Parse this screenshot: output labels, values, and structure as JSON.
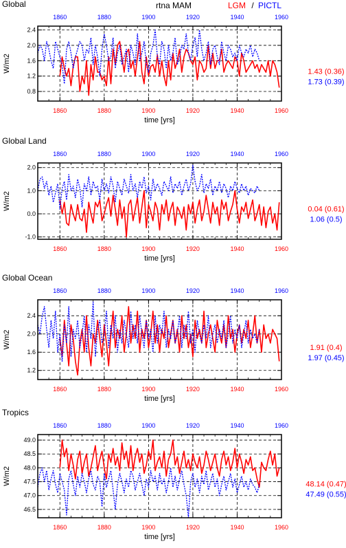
{
  "header": {
    "variable": "rtna MAM",
    "lgm_label": "LGM",
    "separator": "/",
    "pictl_label": "PICTL"
  },
  "colors": {
    "lgm": "#ff0000",
    "pictl": "#0000ff",
    "axis": "#000000"
  },
  "chart_data": [
    {
      "type": "line",
      "title": "Global",
      "xlabel": "time [yrs]",
      "ylabel": "W/m2",
      "xlim": [
        1850,
        1960
      ],
      "ylim": [
        0.55,
        2.5
      ],
      "yticks": [
        0.8,
        1.2,
        1.6,
        2.0,
        2.4
      ],
      "ytick_labels": [
        "0.8",
        "1.2",
        "1.6",
        "2.0",
        "2.4"
      ],
      "xticks": [
        1860,
        1880,
        1900,
        1920,
        1940,
        1960
      ],
      "xtick_labels": [
        "1860",
        "1880",
        "1900",
        "1920",
        "1940",
        "1960"
      ],
      "grid": true,
      "stats": {
        "lgm": "1.43 (0.36)",
        "pictl": "1.73 (0.39)"
      },
      "series": [
        {
          "name": "LGM",
          "color": "#ff0000",
          "style": "solid",
          "x_start": 1860,
          "values": [
            1.2,
            1.7,
            1.4,
            1.2,
            1.4,
            0.95,
            1.45,
            1.7,
            1.7,
            0.8,
            1.2,
            1.0,
            1.6,
            0.7,
            1.5,
            1.1,
            1.7,
            1.3,
            1.3,
            1.1,
            1.2,
            0.95,
            1.7,
            1.0,
            1.9,
            1.5,
            2.0,
            2.1,
            1.7,
            1.3,
            1.8,
            1.9,
            1.4,
            1.6,
            1.2,
            1.7,
            2.1,
            1.3,
            1.0,
            1.7,
            1.2,
            1.45,
            1.5,
            1.3,
            1.75,
            1.2,
            1.6,
            1.2,
            0.95,
            1.6,
            1.1,
            1.8,
            1.4,
            1.6,
            1.9,
            1.3,
            1.7,
            1.9,
            1.8,
            1.6,
            1.5,
            1.7,
            1.1,
            1.6,
            1.5,
            1.3,
            1.4,
            2.0,
            1.4,
            1.8,
            1.4,
            1.6,
            1.6,
            1.9,
            1.3,
            1.5,
            1.6,
            1.5,
            1.4,
            1.7,
            1.6,
            1.2,
            1.8,
            1.6,
            1.3,
            1.4,
            1.5,
            1.6,
            1.4,
            1.5,
            1.3,
            1.5,
            1.4,
            1.3,
            1.6,
            1.2,
            1.6,
            1.5,
            1.3,
            0.9
          ]
        },
        {
          "name": "PICTL",
          "color": "#0000ff",
          "style": "dotted",
          "x_start": 1850,
          "values": [
            1.8,
            2.0,
            1.9,
            1.6,
            2.1,
            1.9,
            1.6,
            1.4,
            2.1,
            1.9,
            1.7,
            1.5,
            1.0,
            1.9,
            2.1,
            1.8,
            1.4,
            1.7,
            1.9,
            2.1,
            2.0,
            1.6,
            1.9,
            1.8,
            2.2,
            1.5,
            2.0,
            1.7,
            1.2,
            1.9,
            2.3,
            2.0,
            1.6,
            1.7,
            2.2,
            1.4,
            1.8,
            2.0,
            1.5,
            1.7,
            1.9,
            1.3,
            2.0,
            1.8,
            1.5,
            2.3,
            1.6,
            1.8,
            2.1,
            1.5,
            1.3,
            1.8,
            2.0,
            2.4,
            1.7,
            1.5,
            2.1,
            1.9,
            1.4,
            2.0,
            1.6,
            1.8,
            2.2,
            1.5,
            1.7,
            2.0,
            1.9,
            2.3,
            1.8,
            1.6,
            2.0,
            2.2,
            1.7,
            2.4,
            1.9,
            1.6,
            1.8,
            2.1,
            1.5,
            1.9,
            2.0,
            1.7,
            1.5,
            2.1,
            1.8,
            1.6,
            2.0,
            1.9,
            1.7,
            1.8,
            1.6,
            2.0,
            1.8,
            1.7,
            1.9,
            1.8,
            2.0,
            1.7,
            1.9,
            1.8,
            1.6
          ]
        }
      ]
    },
    {
      "type": "line",
      "title": "Global Land",
      "xlabel": "time [yrs]",
      "ylabel": "W/m2",
      "xlim": [
        1850,
        1960
      ],
      "ylim": [
        -1.1,
        2.2
      ],
      "yticks": [
        -1.0,
        0.0,
        1.0,
        2.0
      ],
      "ytick_labels": [
        "-1.0",
        "0.0",
        "1.0",
        "2.0"
      ],
      "xticks": [
        1860,
        1880,
        1900,
        1920,
        1940,
        1960
      ],
      "xtick_labels": [
        "1860",
        "1880",
        "1900",
        "1920",
        "1940",
        "1960"
      ],
      "grid": true,
      "stats": {
        "lgm": "0.04 (0.61)",
        "pictl": "1.06 (0.5)"
      },
      "series": [
        {
          "name": "LGM",
          "color": "#ff0000",
          "style": "solid",
          "x_start": 1860,
          "values": [
            0.6,
            0.0,
            0.5,
            -0.4,
            -0.5,
            0.4,
            0.0,
            -0.3,
            0.4,
            -0.2,
            -0.3,
            0.2,
            -0.8,
            0.5,
            0.0,
            -0.4,
            0.5,
            0.3,
            0.6,
            -0.3,
            0.0,
            0.4,
            0.7,
            -0.1,
            0.8,
            0.2,
            -0.5,
            0.6,
            -0.2,
            0.3,
            -1.0,
            0.4,
            0.6,
            -0.3,
            0.2,
            0.7,
            -0.4,
            0.3,
            1.0,
            -0.6,
            0.4,
            0.1,
            -0.3,
            0.5,
            0.2,
            -0.7,
            0.4,
            0.0,
            0.6,
            -0.3,
            0.2,
            0.5,
            -0.5,
            0.3,
            0.1,
            -0.2,
            0.3,
            -0.7,
            0.4,
            0.0,
            0.5,
            -0.4,
            0.2,
            0.6,
            -0.3,
            0.1,
            0.8,
            0.2,
            -0.4,
            0.5,
            0.0,
            0.3,
            -0.5,
            0.6,
            0.2,
            0.5,
            -0.3,
            0.1,
            0.4,
            1.0,
            0.2,
            -0.4,
            0.3,
            0.1,
            0.5,
            -0.2,
            0.2,
            0.6,
            -0.3,
            0.0,
            0.4,
            -0.5,
            0.3,
            -0.6,
            0.1,
            0.3,
            -0.4,
            0.0,
            -0.7,
            0.5
          ]
        },
        {
          "name": "PICTL",
          "color": "#0000ff",
          "style": "dotted",
          "x_start": 1850,
          "values": [
            1.0,
            1.5,
            1.6,
            1.1,
            1.4,
            0.8,
            1.2,
            0.5,
            0.9,
            1.3,
            0.2,
            1.1,
            1.4,
            0.6,
            1.7,
            1.0,
            1.2,
            0.7,
            1.5,
            1.1,
            0.3,
            1.3,
            1.0,
            1.6,
            0.8,
            1.4,
            1.1,
            1.2,
            0.6,
            1.5,
            1.0,
            1.3,
            0.9,
            1.6,
            1.2,
            0.5,
            1.4,
            1.1,
            0.8,
            1.5,
            1.2,
            0.9,
            1.7,
            1.0,
            1.3,
            0.7,
            1.4,
            1.1,
            1.6,
            0.9,
            1.2,
            0.6,
            1.5,
            1.0,
            1.3,
            1.1,
            0.8,
            1.4,
            1.2,
            1.0,
            1.6,
            0.9,
            1.3,
            1.1,
            1.4,
            0.8,
            1.2,
            1.5,
            1.0,
            1.3,
            2.1,
            1.4,
            1.0,
            1.2,
            1.7,
            0.9,
            1.3,
            1.1,
            1.5,
            0.8,
            1.2,
            1.0,
            1.4,
            0.9,
            1.3,
            1.1,
            0.7,
            1.2,
            1.0,
            1.4,
            1.1,
            0.9,
            1.3,
            1.0,
            1.2,
            0.8,
            1.1,
            1.0,
            0.9,
            1.2,
            1.0
          ]
        }
      ]
    },
    {
      "type": "line",
      "title": "Global Ocean",
      "xlabel": "time [yrs]",
      "ylabel": "W/m2",
      "xlim": [
        1850,
        1960
      ],
      "ylim": [
        1.0,
        2.75
      ],
      "yticks": [
        1.2,
        1.6,
        2.0,
        2.4
      ],
      "ytick_labels": [
        "1.2",
        "1.6",
        "2.0",
        "2.4"
      ],
      "xticks": [
        1860,
        1880,
        1900,
        1920,
        1940,
        1960
      ],
      "xtick_labels": [
        "1860",
        "1880",
        "1900",
        "1920",
        "1940",
        "1960"
      ],
      "grid": true,
      "stats": {
        "lgm": "1.91 (0.4)",
        "pictl": "1.97 (0.45)"
      },
      "series": [
        {
          "name": "LGM",
          "color": "#ff0000",
          "style": "solid",
          "x_start": 1860,
          "values": [
            1.9,
            1.5,
            2.3,
            1.8,
            1.3,
            2.2,
            1.9,
            1.4,
            1.1,
            1.8,
            2.1,
            1.6,
            2.4,
            1.7,
            1.3,
            2.0,
            1.8,
            2.3,
            1.9,
            1.5,
            2.2,
            1.8,
            1.3,
            2.0,
            2.5,
            1.7,
            2.1,
            1.9,
            2.4,
            1.6,
            2.0,
            2.6,
            1.8,
            2.2,
            1.9,
            2.5,
            1.6,
            2.1,
            1.9,
            2.3,
            1.7,
            2.0,
            2.5,
            1.8,
            2.2,
            1.6,
            2.1,
            1.9,
            2.4,
            1.7,
            2.0,
            2.3,
            1.8,
            2.1,
            1.6,
            2.4,
            1.9,
            2.2,
            1.7,
            2.0,
            1.5,
            2.3,
            1.9,
            2.1,
            1.8,
            2.5,
            1.7,
            2.0,
            2.2,
            1.9,
            1.6,
            2.3,
            2.0,
            1.8,
            2.2,
            1.7,
            2.4,
            1.9,
            2.1,
            1.6,
            2.0,
            2.2,
            1.8,
            2.1,
            1.9,
            2.3,
            1.7,
            2.0,
            2.4,
            1.8,
            2.1,
            1.6,
            2.2,
            1.9,
            2.0,
            1.8,
            2.1,
            2.0,
            1.9,
            1.4
          ]
        },
        {
          "name": "PICTL",
          "color": "#0000ff",
          "style": "dotted",
          "x_start": 1850,
          "values": [
            2.2,
            2.0,
            2.4,
            2.6,
            2.1,
            1.7,
            2.3,
            1.9,
            2.5,
            1.6,
            2.0,
            1.4,
            2.2,
            1.8,
            2.6,
            1.5,
            2.1,
            1.9,
            2.3,
            1.7,
            2.0,
            2.4,
            1.6,
            2.2,
            1.9,
            2.7,
            1.5,
            2.1,
            2.3,
            1.8,
            2.0,
            2.5,
            1.7,
            2.2,
            1.9,
            2.4,
            1.6,
            2.1,
            1.8,
            2.3,
            2.0,
            1.7,
            2.5,
            1.9,
            2.2,
            1.8,
            2.4,
            2.0,
            1.7,
            2.3,
            1.9,
            2.1,
            1.6,
            2.4,
            1.8,
            2.2,
            2.0,
            2.5,
            1.7,
            2.1,
            1.9,
            2.3,
            1.8,
            2.0,
            2.4,
            1.7,
            2.2,
            1.9,
            2.5,
            1.8,
            2.1,
            1.6,
            2.3,
            2.0,
            1.8,
            2.2,
            1.9,
            2.4,
            1.7,
            2.0,
            2.2,
            1.8,
            2.1,
            1.9,
            2.3,
            1.7,
            2.0,
            2.4,
            1.8,
            2.1,
            1.9,
            2.2,
            1.7,
            2.0,
            2.3,
            1.8,
            2.1,
            1.9,
            2.0,
            1.8,
            2.1
          ]
        }
      ]
    },
    {
      "type": "line",
      "title": "Tropics",
      "xlabel": "time [yrs]",
      "ylabel": "W/m2",
      "xlim": [
        1850,
        1960
      ],
      "ylim": [
        46.2,
        49.2
      ],
      "yticks": [
        46.5,
        47.0,
        47.5,
        48.0,
        48.5,
        49.0
      ],
      "ytick_labels": [
        "46.5",
        "47.0",
        "47.5",
        "48.0",
        "48.5",
        "49.0"
      ],
      "xticks": [
        1860,
        1880,
        1900,
        1920,
        1940,
        1960
      ],
      "xtick_labels": [
        "1860",
        "1880",
        "1900",
        "1920",
        "1940",
        "1960"
      ],
      "grid": true,
      "stats": {
        "lgm": "48.14 (0.47)",
        "pictl": "47.49 (0.55)"
      },
      "series": [
        {
          "name": "LGM",
          "color": "#ff0000",
          "style": "solid",
          "x_start": 1860,
          "values": [
            48.0,
            49.0,
            48.4,
            48.7,
            47.9,
            48.5,
            48.1,
            47.6,
            48.3,
            48.6,
            47.8,
            48.2,
            48.5,
            47.7,
            48.0,
            48.4,
            48.8,
            47.9,
            48.3,
            48.6,
            48.0,
            47.6,
            48.5,
            48.2,
            48.7,
            48.1,
            48.4,
            47.9,
            48.9,
            48.3,
            48.6,
            48.0,
            48.8,
            47.9,
            48.4,
            48.7,
            48.2,
            48.5,
            47.8,
            48.1,
            48.6,
            48.3,
            49.0,
            47.9,
            48.2,
            48.4,
            48.0,
            48.6,
            47.7,
            48.3,
            48.5,
            49.0,
            48.1,
            48.4,
            47.8,
            48.2,
            48.6,
            48.0,
            48.3,
            47.9,
            48.5,
            48.2,
            48.0,
            48.4,
            47.8,
            48.1,
            48.6,
            48.3,
            47.9,
            48.2,
            48.5,
            48.0,
            47.7,
            48.3,
            48.6,
            48.1,
            48.4,
            47.9,
            48.2,
            48.7,
            48.0,
            48.5,
            48.2,
            47.8,
            48.3,
            48.1,
            48.4,
            47.9,
            48.0,
            47.6,
            47.3,
            48.2,
            48.0,
            47.9,
            48.3,
            48.6,
            48.1,
            48.5,
            47.7,
            48.0
          ]
        },
        {
          "name": "PICTL",
          "color": "#0000ff",
          "style": "dotted",
          "x_start": 1850,
          "values": [
            47.3,
            47.8,
            48.0,
            47.5,
            47.9,
            47.2,
            47.6,
            47.9,
            47.4,
            47.1,
            47.8,
            47.5,
            47.2,
            46.3,
            47.6,
            47.9,
            47.4,
            47.0,
            47.7,
            47.3,
            47.8,
            47.5,
            47.1,
            47.6,
            47.9,
            47.4,
            47.2,
            47.7,
            47.5,
            46.6,
            47.8,
            47.3,
            47.6,
            47.9,
            47.2,
            46.5,
            47.4,
            47.8,
            47.5,
            47.1,
            47.6,
            47.3,
            47.9,
            47.7,
            47.2,
            47.5,
            47.8,
            47.4,
            47.0,
            47.6,
            47.3,
            47.9,
            47.5,
            47.7,
            47.2,
            47.8,
            47.4,
            47.6,
            47.1,
            47.5,
            48.0,
            47.3,
            47.7,
            47.2,
            47.6,
            47.9,
            47.4,
            47.0,
            46.2,
            47.5,
            47.8,
            47.3,
            47.6,
            47.1,
            47.7,
            47.4,
            47.9,
            47.2,
            47.5,
            47.8,
            47.3,
            47.6,
            47.0,
            47.4,
            47.7,
            47.2,
            47.5,
            47.8,
            47.3,
            47.6,
            47.1,
            47.4,
            47.7,
            47.3,
            47.5,
            47.2,
            47.6,
            47.4,
            47.3,
            47.1,
            47.4
          ]
        }
      ]
    }
  ]
}
